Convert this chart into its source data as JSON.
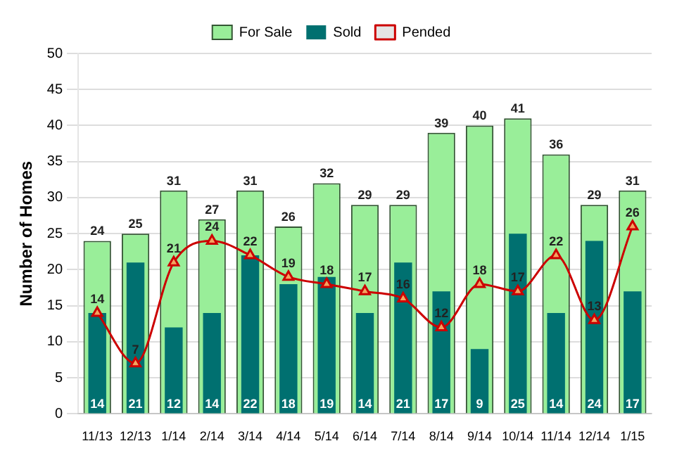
{
  "chart_data": {
    "type": "bar",
    "ylabel": "Number of Homes",
    "categories": [
      "11/13",
      "12/13",
      "1/14",
      "2/14",
      "3/14",
      "4/14",
      "5/14",
      "6/14",
      "7/14",
      "8/14",
      "9/14",
      "10/14",
      "11/14",
      "12/14",
      "1/15"
    ],
    "series": [
      {
        "name": "For Sale",
        "color": "#99ee99",
        "values": [
          24,
          25,
          31,
          27,
          31,
          26,
          32,
          29,
          29,
          39,
          40,
          41,
          36,
          29,
          31
        ]
      },
      {
        "name": "Sold",
        "color": "#007070",
        "values": [
          14,
          21,
          12,
          14,
          22,
          18,
          19,
          14,
          21,
          17,
          9,
          25,
          14,
          24,
          17
        ]
      },
      {
        "name": "Pended",
        "type": "line",
        "color": "#cc0000",
        "values": [
          14,
          7,
          21,
          24,
          22,
          19,
          18,
          17,
          16,
          12,
          18,
          17,
          22,
          13,
          26
        ]
      }
    ],
    "ylim": [
      0,
      50
    ],
    "yticks": [
      0,
      5,
      10,
      15,
      20,
      25,
      30,
      35,
      40,
      45,
      50
    ],
    "grid": "y",
    "legend": "top",
    "marker": "triangle",
    "data_labels": true
  }
}
